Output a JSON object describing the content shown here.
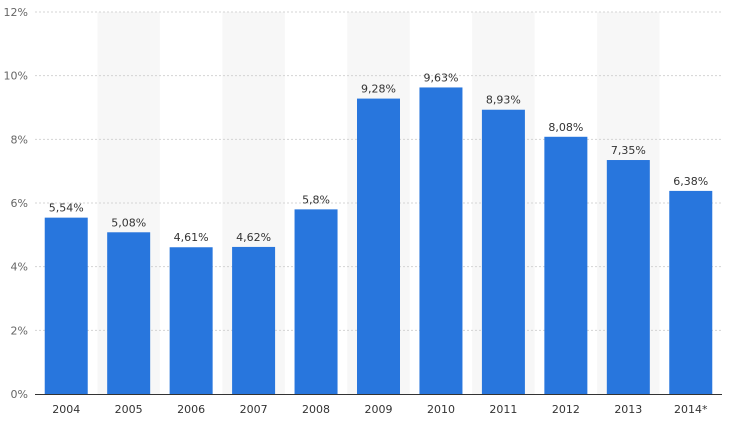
{
  "chart_data": {
    "type": "bar",
    "categories": [
      "2004",
      "2005",
      "2006",
      "2007",
      "2008",
      "2009",
      "2010",
      "2011",
      "2012",
      "2013",
      "2014*"
    ],
    "values": [
      5.54,
      5.08,
      4.61,
      4.62,
      5.8,
      9.28,
      9.63,
      8.93,
      8.08,
      7.35,
      6.38
    ],
    "data_labels": [
      "5,54%",
      "5,08%",
      "4,61%",
      "4,62%",
      "5,8%",
      "9,28%",
      "9,63%",
      "8,93%",
      "8,08%",
      "7,35%",
      "6,38%"
    ],
    "title": "",
    "xlabel": "",
    "ylabel": "",
    "ylim": [
      0,
      12
    ],
    "y_ticks": [
      {
        "value": 0,
        "label": "0%"
      },
      {
        "value": 2,
        "label": "2%"
      },
      {
        "value": 4,
        "label": "4%"
      },
      {
        "value": 6,
        "label": "6%"
      },
      {
        "value": 8,
        "label": "8%"
      },
      {
        "value": 10,
        "label": "10%"
      },
      {
        "value": 12,
        "label": "12%"
      }
    ],
    "grid": true,
    "legend": "none",
    "alternating_band_categories": [
      "2005",
      "2007",
      "2009",
      "2011",
      "2013"
    ]
  },
  "colors": {
    "bar": "#2876dd",
    "band": "#f7f7f7",
    "grid": "#d4d4d4",
    "axis": "#333333"
  }
}
